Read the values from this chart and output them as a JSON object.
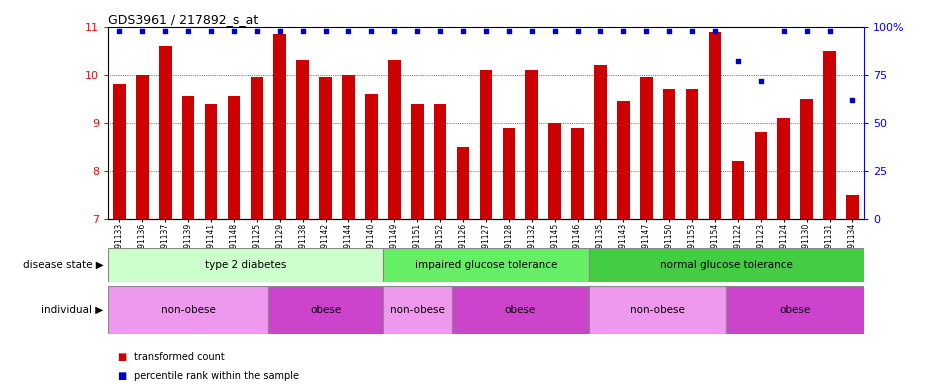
{
  "title": "GDS3961 / 217892_s_at",
  "samples": [
    "GSM691133",
    "GSM691136",
    "GSM691137",
    "GSM691139",
    "GSM691141",
    "GSM691148",
    "GSM691125",
    "GSM691129",
    "GSM691138",
    "GSM691142",
    "GSM691144",
    "GSM691140",
    "GSM691149",
    "GSM691151",
    "GSM691152",
    "GSM691126",
    "GSM691127",
    "GSM691128",
    "GSM691132",
    "GSM691145",
    "GSM691146",
    "GSM691135",
    "GSM691143",
    "GSM691147",
    "GSM691150",
    "GSM691153",
    "GSM691154",
    "GSM691122",
    "GSM691123",
    "GSM691124",
    "GSM691130",
    "GSM691131",
    "GSM691134"
  ],
  "bar_values": [
    9.8,
    10.0,
    10.6,
    9.55,
    9.4,
    9.55,
    9.95,
    10.85,
    10.3,
    9.95,
    10.0,
    9.6,
    10.3,
    9.4,
    9.4,
    8.5,
    10.1,
    8.9,
    10.1,
    9.0,
    8.9,
    10.2,
    9.45,
    9.95,
    9.7,
    9.7,
    10.9,
    8.2,
    8.8,
    9.1,
    9.5,
    10.5,
    7.5
  ],
  "percentile_values": [
    98,
    98,
    98,
    98,
    98,
    98,
    98,
    98,
    98,
    98,
    98,
    98,
    98,
    98,
    98,
    98,
    98,
    98,
    98,
    98,
    98,
    98,
    98,
    98,
    98,
    98,
    98,
    82,
    72,
    98,
    98,
    98,
    62
  ],
  "bar_color": "#cc0000",
  "percentile_color": "#0000cc",
  "ymin": 7,
  "ymax": 11,
  "yticks_left": [
    7,
    8,
    9,
    10,
    11
  ],
  "yticks_right": [
    0,
    25,
    50,
    75,
    100
  ],
  "gridlines_at": [
    8,
    9,
    10
  ],
  "disease_state_groups": [
    {
      "label": "type 2 diabetes",
      "start": 0,
      "end": 12,
      "color": "#ccffcc"
    },
    {
      "label": "impaired glucose tolerance",
      "start": 12,
      "end": 21,
      "color": "#66ee66"
    },
    {
      "label": "normal glucose tolerance",
      "start": 21,
      "end": 33,
      "color": "#44cc44"
    }
  ],
  "individual_groups": [
    {
      "label": "non-obese",
      "start": 0,
      "end": 7,
      "color": "#ee99ee"
    },
    {
      "label": "obese",
      "start": 7,
      "end": 12,
      "color": "#cc44cc"
    },
    {
      "label": "non-obese",
      "start": 12,
      "end": 15,
      "color": "#ee99ee"
    },
    {
      "label": "obese",
      "start": 15,
      "end": 21,
      "color": "#cc44cc"
    },
    {
      "label": "non-obese",
      "start": 21,
      "end": 27,
      "color": "#ee99ee"
    },
    {
      "label": "obese",
      "start": 27,
      "end": 33,
      "color": "#cc44cc"
    }
  ],
  "legend_items": [
    {
      "label": "transformed count",
      "color": "#cc0000"
    },
    {
      "label": "percentile rank within the sample",
      "color": "#0000cc"
    }
  ],
  "bar_bottom": 7,
  "bar_width": 0.55
}
